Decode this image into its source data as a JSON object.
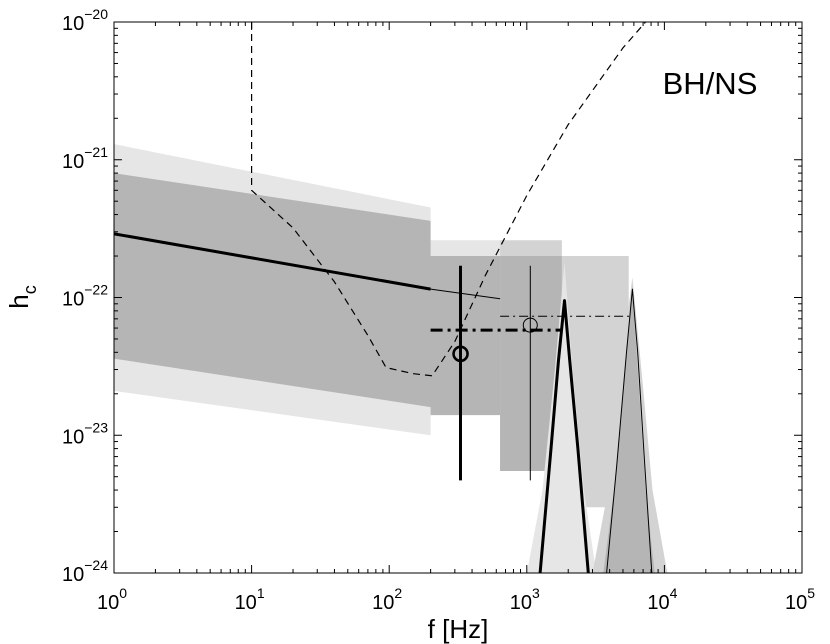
{
  "chart_data": {
    "type": "line",
    "xscale": "log",
    "yscale": "log",
    "xlim": [
      1,
      100000
    ],
    "ylim": [
      1e-24,
      1e-20
    ],
    "xlabel": "f [Hz]",
    "ylabel_main": "h",
    "ylabel_sub": "c",
    "annotation": "BH/NS",
    "x_ticks": [
      {
        "value": 1,
        "base": "10",
        "exp": "0"
      },
      {
        "value": 10,
        "base": "10",
        "exp": "1"
      },
      {
        "value": 100,
        "base": "10",
        "exp": "2"
      },
      {
        "value": 1000,
        "base": "10",
        "exp": "3"
      },
      {
        "value": 10000,
        "base": "10",
        "exp": "4"
      },
      {
        "value": 100000,
        "base": "10",
        "exp": "5"
      }
    ],
    "y_ticks": [
      {
        "value": 1e-24,
        "base": "10",
        "exp": "−24"
      },
      {
        "value": 1e-23,
        "base": "10",
        "exp": "−23"
      },
      {
        "value": 1e-22,
        "base": "10",
        "exp": "−22"
      },
      {
        "value": 1e-21,
        "base": "10",
        "exp": "−21"
      },
      {
        "value": 1e-20,
        "base": "10",
        "exp": "−20"
      }
    ],
    "bands": [
      {
        "color": "#e6e6e6",
        "polygon": [
          [
            1,
            1.3e-21
          ],
          [
            200,
            4.5e-22
          ],
          [
            200,
            2.6e-22
          ],
          [
            640,
            2.6e-22
          ],
          [
            640,
            2.1e-23
          ],
          [
            200,
            2.1e-23
          ],
          [
            200,
            1e-23
          ],
          [
            1,
            2.1e-23
          ]
        ]
      },
      {
        "color": "#d3d3d3",
        "polygon": [
          [
            640,
            2.6e-22
          ],
          [
            1800,
            2.6e-22
          ],
          [
            1800,
            5.5e-24
          ],
          [
            640,
            5.5e-24
          ]
        ]
      },
      {
        "color": "#b5b5b5",
        "polygon": [
          [
            1,
            8e-22
          ],
          [
            200,
            3.6e-22
          ],
          [
            200,
            2e-22
          ],
          [
            640,
            2e-22
          ],
          [
            640,
            1.4e-23
          ],
          [
            200,
            1.4e-23
          ],
          [
            200,
            1.6e-23
          ],
          [
            1,
            3.6e-23
          ]
        ]
      },
      {
        "color": "#b5b5b5",
        "polygon": [
          [
            640,
            2e-22
          ],
          [
            1800,
            2e-22
          ],
          [
            1800,
            5.5e-24
          ],
          [
            640,
            5.5e-24
          ]
        ]
      },
      {
        "color": "#d3d3d3",
        "polygon": [
          [
            1800,
            2e-22
          ],
          [
            5500,
            2e-22
          ],
          [
            5500,
            3e-24
          ],
          [
            1800,
            3e-24
          ]
        ]
      },
      {
        "color": "#e6e6e6",
        "polygon": [
          [
            1000,
            1e-24
          ],
          [
            1300,
            4e-24
          ],
          [
            1600,
            3e-23
          ],
          [
            1880,
            1.8e-22
          ],
          [
            2150,
            3e-23
          ],
          [
            2600,
            4e-24
          ],
          [
            3200,
            1e-24
          ]
        ]
      },
      {
        "color": "#d3d3d3",
        "polygon": [
          [
            3000,
            1e-24
          ],
          [
            3900,
            4e-24
          ],
          [
            4800,
            3e-23
          ],
          [
            5850,
            1.4e-22
          ],
          [
            6800,
            3e-23
          ],
          [
            8200,
            4e-24
          ],
          [
            10500,
            1e-24
          ]
        ]
      },
      {
        "color": "#b5b5b5",
        "polygon": [
          [
            3600,
            1e-24
          ],
          [
            4300,
            4e-24
          ],
          [
            5200,
            3e-23
          ],
          [
            5850,
            1.2e-22
          ],
          [
            6400,
            3e-23
          ],
          [
            7300,
            4e-24
          ],
          [
            8500,
            1e-24
          ]
        ]
      }
    ],
    "series": [
      {
        "style": "dashed",
        "width": 1.2,
        "color": "#000",
        "points": [
          [
            10,
            1e-20
          ],
          [
            10,
            6e-22
          ],
          [
            20,
            3.2e-22
          ],
          [
            40,
            1.3e-22
          ],
          [
            70,
            5.3e-23
          ],
          [
            95,
            3.1e-23
          ],
          [
            150,
            2.8e-23
          ],
          [
            205,
            2.7e-23
          ],
          [
            300,
            4.8e-23
          ],
          [
            500,
            1.45e-22
          ],
          [
            1000,
            5.5e-22
          ],
          [
            2000,
            1.8e-21
          ],
          [
            5000,
            6.5e-21
          ],
          [
            7300,
            1e-20
          ]
        ]
      },
      {
        "style": "solid",
        "width": 3,
        "color": "#000",
        "points": [
          [
            1,
            2.9e-22
          ],
          [
            200,
            1.15e-22
          ]
        ]
      },
      {
        "style": "solid",
        "width": 1,
        "color": "#000",
        "points": [
          [
            200,
            1.15e-22
          ],
          [
            640,
            9.8e-23
          ]
        ]
      },
      {
        "style": "dashdot-thick",
        "width": 3,
        "color": "#000",
        "points": [
          [
            200,
            5.8e-23
          ],
          [
            1800,
            5.8e-23
          ]
        ]
      },
      {
        "style": "dashdot",
        "width": 1,
        "color": "#000",
        "points": [
          [
            640,
            7.3e-23
          ],
          [
            5800,
            7.3e-23
          ]
        ]
      },
      {
        "style": "solid",
        "width": 3,
        "color": "#000",
        "points": [
          [
            330,
            1.7e-22
          ],
          [
            330,
            4.7e-24
          ]
        ]
      },
      {
        "style": "solid",
        "width": 1,
        "color": "#000",
        "points": [
          [
            1060,
            1.7e-22
          ],
          [
            1060,
            4.7e-24
          ]
        ]
      },
      {
        "style": "solid",
        "width": 3,
        "color": "#000",
        "points": [
          [
            1250,
            1e-24
          ],
          [
            1500,
            8e-24
          ],
          [
            1700,
            3.5e-23
          ],
          [
            1880,
            9.5e-23
          ],
          [
            2050,
            3.5e-23
          ],
          [
            2350,
            8e-24
          ],
          [
            2800,
            1e-24
          ]
        ]
      },
      {
        "style": "solid",
        "width": 1,
        "color": "#000",
        "points": [
          [
            3800,
            1e-24
          ],
          [
            4500,
            6e-24
          ],
          [
            5300,
            4e-23
          ],
          [
            5850,
            1.15e-22
          ],
          [
            6400,
            4e-23
          ],
          [
            7200,
            6e-24
          ],
          [
            8100,
            1e-24
          ]
        ]
      }
    ],
    "markers": [
      {
        "x": 330,
        "y": 3.9e-23,
        "size": 7,
        "width": 2.6
      },
      {
        "x": 1060,
        "y": 6.3e-23,
        "size": 7,
        "width": 1
      }
    ]
  }
}
